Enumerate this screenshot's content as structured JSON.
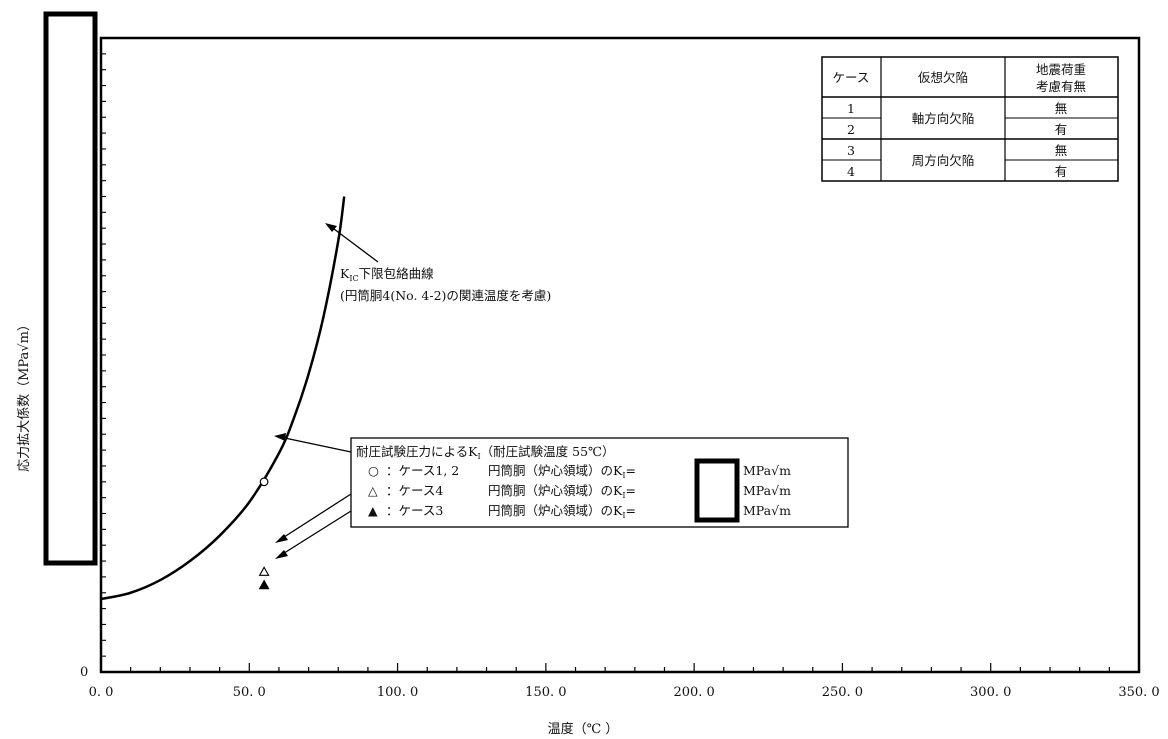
{
  "chart_data": {
    "type": "line",
    "title": "",
    "xlabel": "温度（℃ ）",
    "ylabel": "応力拡大係数（MPa√m）",
    "xlim": [
      0,
      350
    ],
    "x_ticks": [
      "0. 0",
      "50. 0",
      "100. 0",
      "150. 0",
      "200. 0",
      "250. 0",
      "300. 0",
      "350. 0"
    ],
    "x_tick_values": [
      0,
      50,
      100,
      150,
      200,
      250,
      300,
      350
    ],
    "y_tick_zero": "0",
    "grid": false,
    "curve": {
      "label_main": "K",
      "label_sub": "IC",
      "label_rest": "下限包絡曲線",
      "label_line2": "(円筒胴4(No. 4-2)の関連温度を考慮)",
      "x": [
        0,
        10,
        20,
        30,
        40,
        50,
        60,
        65,
        70,
        75,
        80,
        82
      ],
      "y": [
        0.115,
        0.125,
        0.145,
        0.175,
        0.215,
        0.268,
        0.345,
        0.4,
        0.47,
        0.56,
        0.68,
        0.75
      ]
    },
    "points": [
      {
        "name": "ケース1, 2",
        "marker": "circle-open",
        "x": 55,
        "y": 0.3
      },
      {
        "name": "ケース4",
        "marker": "triangle-open",
        "x": 55,
        "y": 0.158
      },
      {
        "name": "ケース3",
        "marker": "triangle-filled",
        "x": 55,
        "y": 0.137
      }
    ],
    "legend_box": {
      "title": "耐圧試験圧力によるK",
      "title_sub": "I",
      "title_rest": "（耐圧試験温度 55℃）",
      "rows": [
        {
          "symbol": "○",
          "case": "：ケース1, 2",
          "location": "円筒胴（炉心領域）のK",
          "sub": "I",
          "eq": "=",
          "unit": "MPa√m"
        },
        {
          "symbol": "△",
          "case": "：ケース4",
          "location": "円筒胴（炉心領域）のK",
          "sub": "I",
          "eq": "=",
          "unit": "MPa√m"
        },
        {
          "symbol": "▲",
          "case": "：ケース3",
          "location": "円筒胴（炉心領域）のK",
          "sub": "I",
          "eq": "=",
          "unit": "MPa√m"
        }
      ]
    },
    "case_table": {
      "headers": [
        "ケース",
        "仮想欠陥",
        "地震荷重",
        "考慮有無"
      ],
      "rows": [
        {
          "case": "1",
          "seismic": "無"
        },
        {
          "case": "2",
          "seismic": "有"
        },
        {
          "case": "3",
          "seismic": "無"
        },
        {
          "case": "4",
          "seismic": "有"
        }
      ],
      "defects": [
        "軸方向欠陥",
        "周方向欠陥"
      ]
    }
  }
}
